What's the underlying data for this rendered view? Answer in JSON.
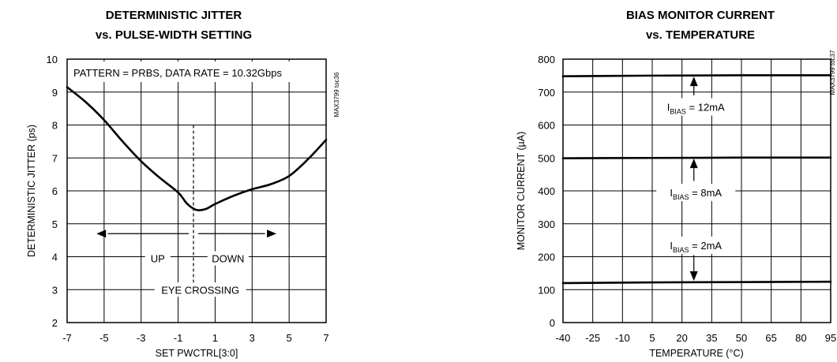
{
  "chart_data": [
    {
      "type": "line",
      "title": [
        "DETERMINISTIC JITTER",
        "vs. PULSE-WIDTH SETTING"
      ],
      "xlabel": "SET  PWCTRL[3:0]",
      "ylabel": "DETERMINISTIC JITTER (ps)",
      "xlim": [
        -7,
        7
      ],
      "ylim": [
        2,
        10
      ],
      "xticks": [
        "-7",
        "-5",
        "-3",
        "-1",
        "1",
        "3",
        "5",
        "7"
      ],
      "yticks": [
        "2",
        "3",
        "4",
        "5",
        "6",
        "7",
        "8",
        "9",
        "10"
      ],
      "grid": true,
      "annotation": "PATTERN = PRBS, DATA RATE = 10.32Gbps",
      "side_label": "MAX3799 toc36",
      "arrow_left_label": "UP",
      "arrow_right_label": "DOWN",
      "eye_crossing_label": "EYE CROSSING",
      "eye_crossing_x": 0,
      "series": [
        {
          "x": [
            -7,
            -6,
            -5,
            -4,
            -3,
            -2,
            -1,
            -0.5,
            0,
            0.5,
            1,
            2,
            3,
            4,
            5,
            6,
            7
          ],
          "values": [
            9.15,
            8.7,
            8.15,
            7.5,
            6.9,
            6.4,
            5.95,
            5.6,
            5.42,
            5.45,
            5.6,
            5.85,
            6.05,
            6.2,
            6.45,
            6.95,
            7.55
          ]
        }
      ]
    },
    {
      "type": "line",
      "title": [
        "BIAS MONITOR CURRENT",
        "vs. TEMPERATURE"
      ],
      "xlabel": "TEMPERATURE (°C)",
      "ylabel": "MONITOR CURRENT (µA)",
      "xlim": [
        -40,
        95
      ],
      "ylim": [
        0,
        800
      ],
      "xticks": [
        "-40",
        "-25",
        "-10",
        "5",
        "20",
        "35",
        "50",
        "65",
        "80",
        "95"
      ],
      "yticks": [
        "0",
        "100",
        "200",
        "300",
        "400",
        "500",
        "600",
        "700",
        "800"
      ],
      "grid": true,
      "side_label": "MAX3799 toc37",
      "series": [
        {
          "name": "IBIAS = 12mA",
          "label_main": "I",
          "label_sub": "BIAS",
          "label_rest": " = 12mA",
          "x": [
            -40,
            5,
            50,
            95
          ],
          "values": [
            748,
            750,
            751,
            751
          ]
        },
        {
          "name": "IBIAS = 8mA",
          "label_main": "I",
          "label_sub": "BIAS",
          "label_rest": " = 8mA",
          "x": [
            -40,
            5,
            50,
            95
          ],
          "values": [
            499,
            500,
            501,
            501
          ]
        },
        {
          "name": "IBIAS = 2mA",
          "label_main": "I",
          "label_sub": "BIAS",
          "label_rest": " = 2mA",
          "x": [
            -40,
            5,
            50,
            95
          ],
          "values": [
            120,
            122,
            123,
            124
          ]
        }
      ]
    }
  ]
}
